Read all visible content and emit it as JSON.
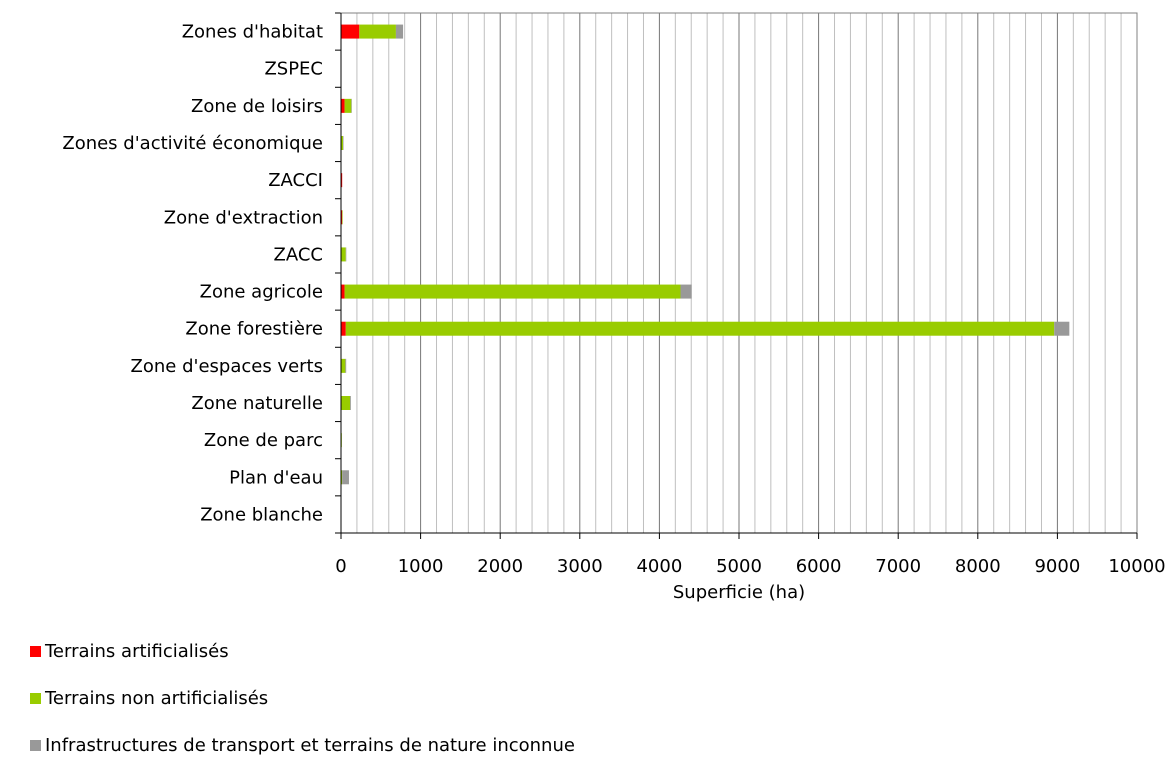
{
  "chart_data": {
    "type": "bar",
    "orientation": "horizontal",
    "stacked": true,
    "categories": [
      "Zones d'habitat",
      "ZSPEC",
      "Zone de loisirs",
      "Zones d'activité économique",
      "ZACCI",
      "Zone d'extraction",
      "ZACC",
      "Zone agricole",
      "Zone forestière",
      "Zone d'espaces verts",
      "Zone naturelle",
      "Zone de parc",
      "Plan d'eau",
      "Zone blanche"
    ],
    "series": [
      {
        "name": "Terrains artificialisés",
        "color": "#ff0000",
        "values": [
          230,
          0,
          45,
          0,
          15,
          15,
          0,
          45,
          60,
          0,
          0,
          0,
          0,
          0
        ]
      },
      {
        "name": "Terrains non artificialisés",
        "color": "#99cc00",
        "values": [
          460,
          0,
          85,
          25,
          0,
          5,
          60,
          4220,
          8900,
          55,
          115,
          10,
          15,
          0
        ]
      },
      {
        "name": "Infrastructures de transport et terrains de nature inconnue",
        "color": "#999999",
        "values": [
          90,
          0,
          5,
          5,
          0,
          0,
          5,
          140,
          190,
          10,
          10,
          0,
          85,
          0
        ]
      }
    ],
    "xlabel": "Superficie (ha)",
    "ylabel": "",
    "xlim": [
      0,
      10000
    ],
    "xticks": [
      "0",
      "1000",
      "2000",
      "3000",
      "4000",
      "5000",
      "6000",
      "7000",
      "8000",
      "9000",
      "10000"
    ],
    "grid": "vertical",
    "legend_position": "bottom-left"
  }
}
